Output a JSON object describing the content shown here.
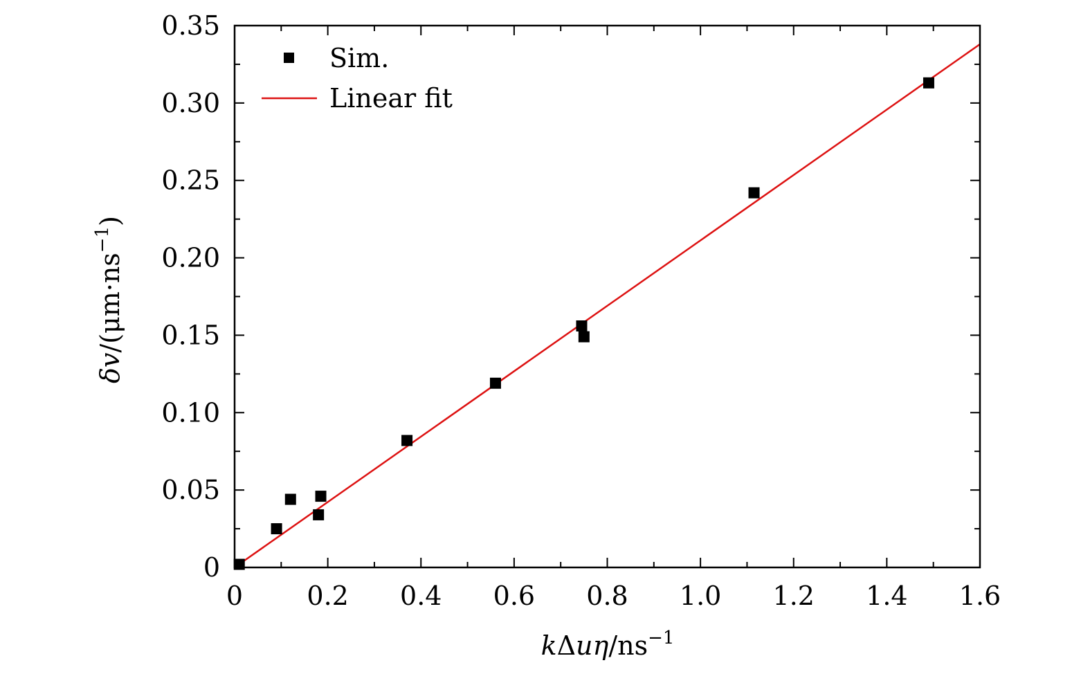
{
  "chart_data": {
    "type": "scatter",
    "xlabel_parts": {
      "k": "k",
      "delta": "Δ",
      "u": "u",
      "eta": "η",
      "unit": "/ns",
      "exp": "−1"
    },
    "ylabel_parts": {
      "delta": "δ",
      "v": "v",
      "unit": "/(μm·ns",
      "exp": "−1",
      "close": ")"
    },
    "xlim": [
      0,
      1.6
    ],
    "ylim": [
      0,
      0.35
    ],
    "x_ticks": [
      "0",
      "0.2",
      "0.4",
      "0.6",
      "0.8",
      "1.0",
      "1.2",
      "1.4",
      "1.6"
    ],
    "x_tick_values": [
      0,
      0.2,
      0.4,
      0.6,
      0.8,
      1.0,
      1.2,
      1.4,
      1.6
    ],
    "y_ticks": [
      "0",
      "0.05",
      "0.10",
      "0.15",
      "0.20",
      "0.25",
      "0.30",
      "0.35"
    ],
    "y_tick_values": [
      0,
      0.05,
      0.1,
      0.15,
      0.2,
      0.25,
      0.3,
      0.35
    ],
    "grid": false,
    "legend_position": "top-left",
    "series": [
      {
        "name": "Sim.",
        "kind": "scatter",
        "marker": "square",
        "color": "#000000",
        "points": [
          {
            "x": 0.01,
            "y": 0.002
          },
          {
            "x": 0.09,
            "y": 0.025
          },
          {
            "x": 0.12,
            "y": 0.044
          },
          {
            "x": 0.18,
            "y": 0.034
          },
          {
            "x": 0.185,
            "y": 0.046
          },
          {
            "x": 0.37,
            "y": 0.082
          },
          {
            "x": 0.56,
            "y": 0.119
          },
          {
            "x": 0.745,
            "y": 0.156
          },
          {
            "x": 0.75,
            "y": 0.149
          },
          {
            "x": 1.115,
            "y": 0.242
          },
          {
            "x": 1.49,
            "y": 0.313
          }
        ]
      },
      {
        "name": "Linear fit",
        "kind": "line",
        "color": "#dd1111",
        "points": [
          {
            "x": 0,
            "y": 0
          },
          {
            "x": 1.6,
            "y": 0.338
          }
        ]
      }
    ]
  }
}
